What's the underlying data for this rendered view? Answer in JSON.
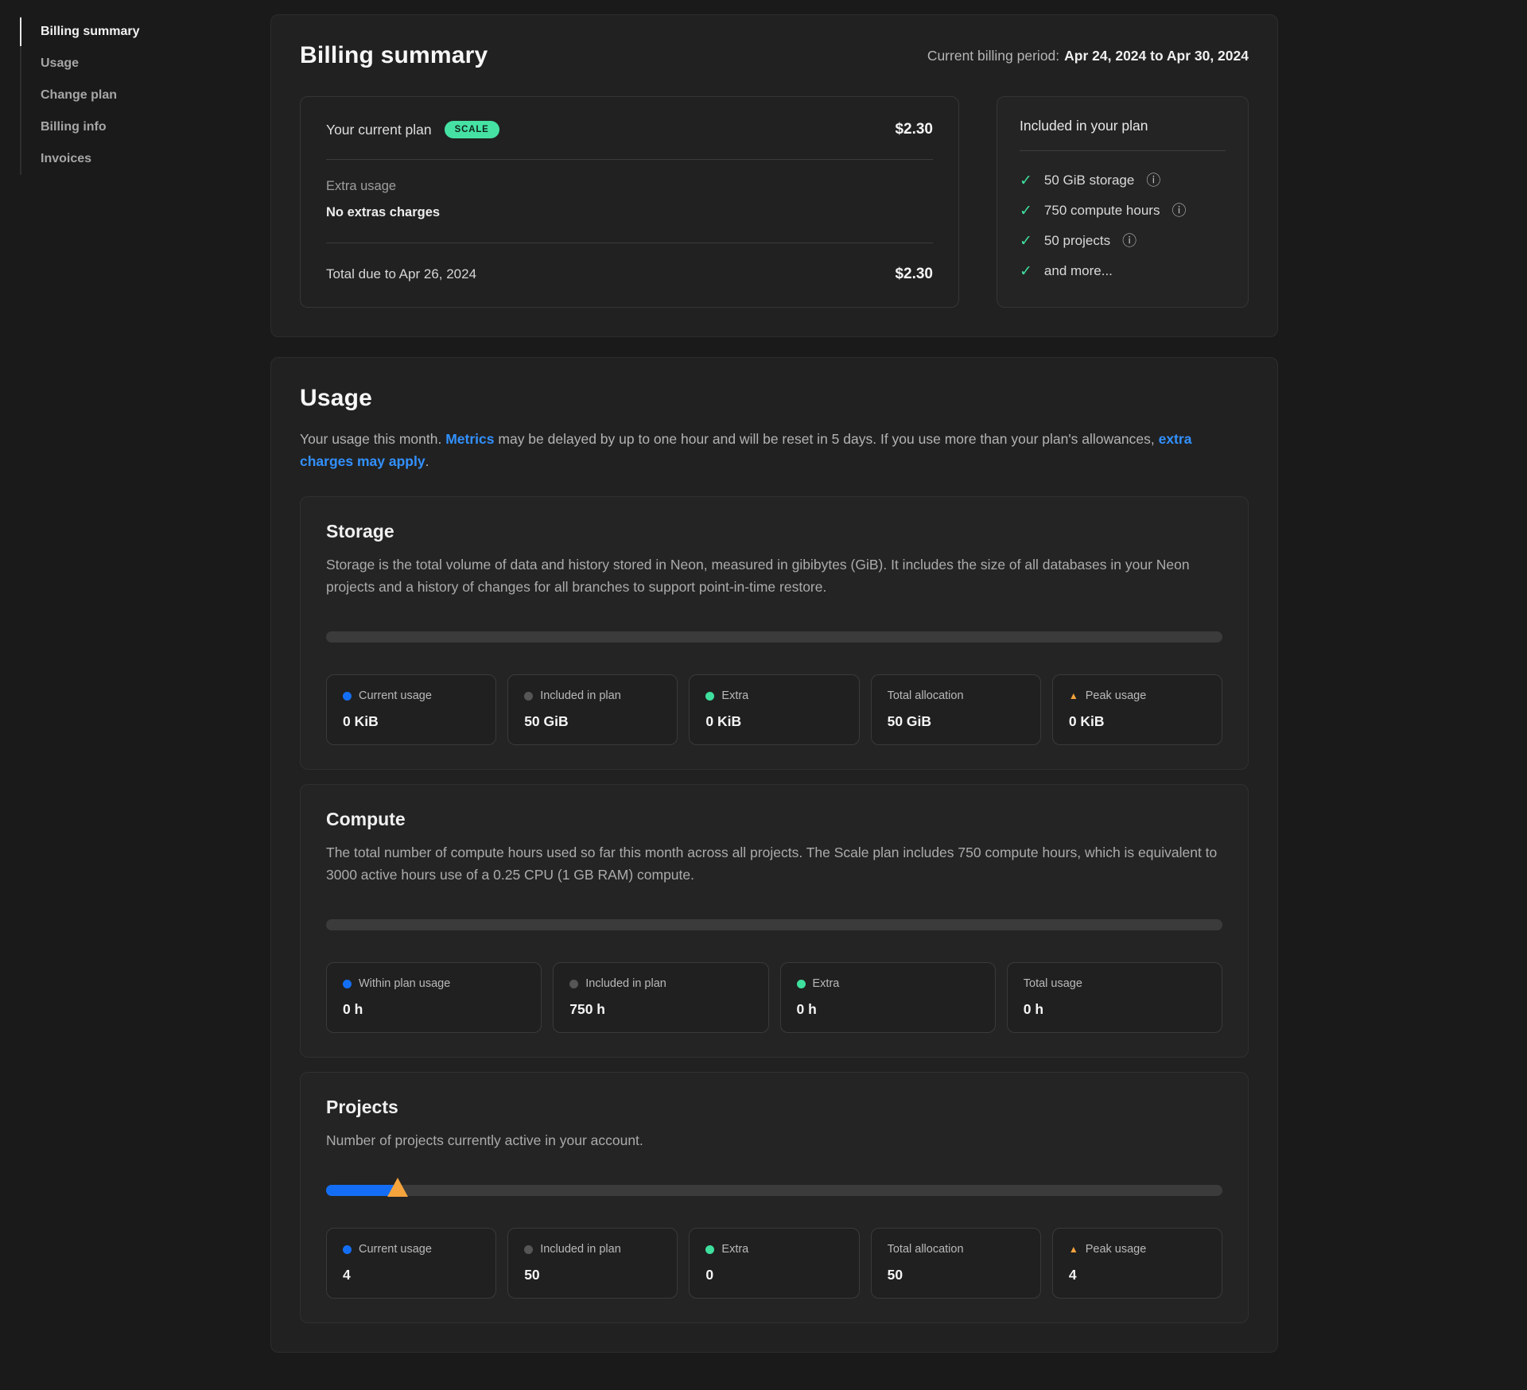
{
  "colors": {
    "accent_blue": "#146ef5",
    "link_blue": "#3291ff",
    "badge_green": "#45e2a4",
    "check_green": "#3fdf9e",
    "peak_orange": "#f5a33c",
    "background": "#1a1a1a"
  },
  "icons": {
    "check": "✓",
    "info": "ⓘ",
    "peak_triangle": "▲"
  },
  "sidebar": {
    "items": [
      {
        "label": "Billing summary",
        "active": true
      },
      {
        "label": "Usage",
        "active": false
      },
      {
        "label": "Change plan",
        "active": false
      },
      {
        "label": "Billing info",
        "active": false
      },
      {
        "label": "Invoices",
        "active": false
      }
    ]
  },
  "billing_summary": {
    "title": "Billing summary",
    "period_label": "Current billing period:",
    "period_value": "Apr 24, 2024 to Apr 30, 2024",
    "plan": {
      "current_plan_label": "Your current plan",
      "badge": "SCALE",
      "plan_amount": "$2.30",
      "extra_usage_label": "Extra usage",
      "extra_usage_value": "No extras charges",
      "total_due_label": "Total due to Apr 26, 2024",
      "total_due_amount": "$2.30"
    },
    "included": {
      "title": "Included in your plan",
      "items": [
        {
          "label": "50 GiB storage",
          "has_info": true
        },
        {
          "label": "750 compute hours",
          "has_info": true
        },
        {
          "label": "50 projects",
          "has_info": true
        },
        {
          "label": "and more...",
          "has_info": false
        }
      ]
    }
  },
  "usage": {
    "title": "Usage",
    "intro": {
      "pre": "Your usage this month. ",
      "metrics_link": "Metrics",
      "mid": " may be delayed by up to one hour and will be reset in 5 days. If you use more than your plan's allowances, ",
      "charges_link": "extra charges may apply",
      "end": "."
    },
    "sections": [
      {
        "title": "Storage",
        "description": "Storage is the total volume of data and history stored in Neon, measured in gibibytes (GiB). It includes the size of all databases in your Neon projects and a history of changes for all branches to support point-in-time restore.",
        "progress_percent": 0,
        "stats": [
          {
            "label": "Current usage",
            "value": "0 KiB",
            "indicator": "dot-blue"
          },
          {
            "label": "Included in plan",
            "value": "50 GiB",
            "indicator": "dot-gray"
          },
          {
            "label": "Extra",
            "value": "0 KiB",
            "indicator": "dot-green"
          },
          {
            "label": "Total allocation",
            "value": "50 GiB",
            "indicator": "none"
          },
          {
            "label": "Peak usage",
            "value": "0 KiB",
            "indicator": "triangle-orange"
          }
        ]
      },
      {
        "title": "Compute",
        "description": "The total number of compute hours used so far this month across all projects. The Scale plan includes 750 compute hours, which is equivalent to 3000 active hours use of a 0.25 CPU (1 GB RAM) compute.",
        "progress_percent": 0,
        "stats": [
          {
            "label": "Within plan usage",
            "value": "0 h",
            "indicator": "dot-blue"
          },
          {
            "label": "Included in plan",
            "value": "750 h",
            "indicator": "dot-gray"
          },
          {
            "label": "Extra",
            "value": "0 h",
            "indicator": "dot-green"
          },
          {
            "label": "Total usage",
            "value": "0 h",
            "indicator": "none"
          }
        ]
      },
      {
        "title": "Projects",
        "description": "Number of projects currently active in your account.",
        "progress_percent": 8,
        "peak_marker_percent": 8,
        "stats": [
          {
            "label": "Current usage",
            "value": "4",
            "indicator": "dot-blue"
          },
          {
            "label": "Included in plan",
            "value": "50",
            "indicator": "dot-gray"
          },
          {
            "label": "Extra",
            "value": "0",
            "indicator": "dot-green"
          },
          {
            "label": "Total allocation",
            "value": "50",
            "indicator": "none"
          },
          {
            "label": "Peak usage",
            "value": "4",
            "indicator": "triangle-orange"
          }
        ]
      }
    ]
  }
}
